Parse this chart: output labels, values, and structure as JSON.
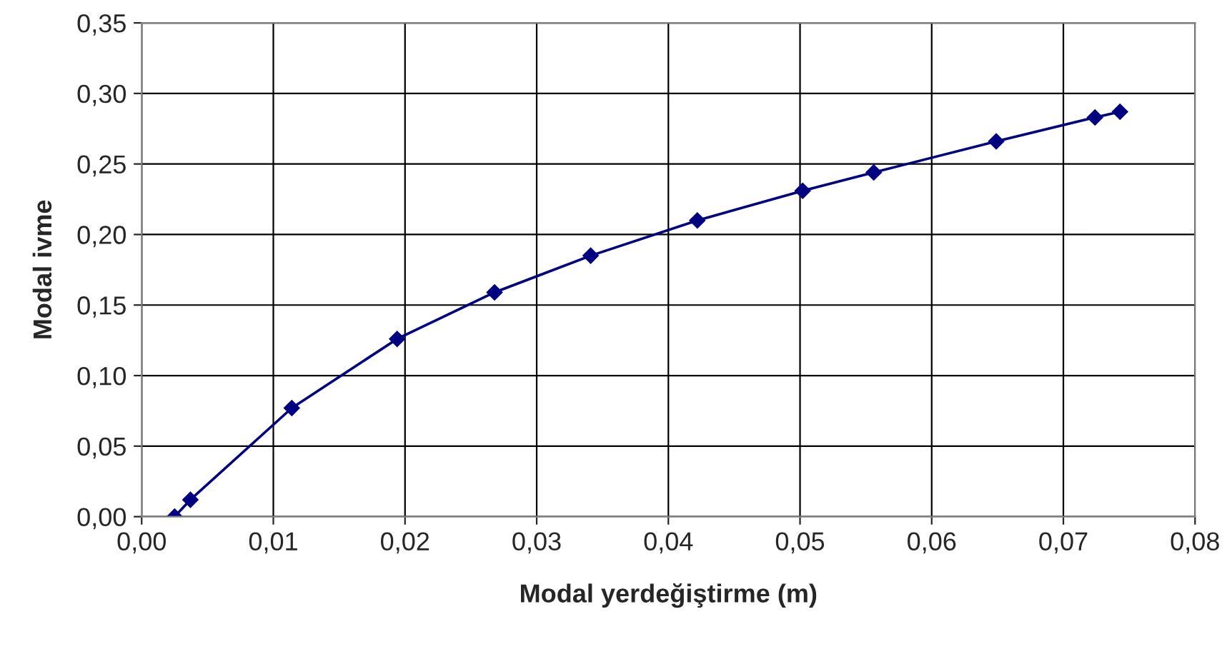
{
  "chart_data": {
    "type": "line",
    "xlabel": "Modal yerdeğiştirme (m)",
    "ylabel": "Modal ivme",
    "series": [
      {
        "color": "#000080",
        "x": [
          0.0025,
          0.0037,
          0.0114,
          0.0194,
          0.0268,
          0.0341,
          0.0422,
          0.0502,
          0.0556,
          0.0649,
          0.0724,
          0.0743
        ],
        "values": [
          0.0,
          0.012,
          0.077,
          0.126,
          0.159,
          0.185,
          0.21,
          0.231,
          0.244,
          0.266,
          0.283,
          0.287
        ]
      }
    ],
    "marker": "diamond",
    "line_style": "solid",
    "grid": true,
    "legend": false,
    "xlim": [
      0,
      0.08
    ],
    "ylim": [
      0,
      0.35
    ],
    "xticks": [
      {
        "value": 0,
        "label": "0,00"
      },
      {
        "value": 0.01,
        "label": "0,01"
      },
      {
        "value": 0.02,
        "label": "0,02"
      },
      {
        "value": 0.03,
        "label": "0,03"
      },
      {
        "value": 0.04,
        "label": "0,04"
      },
      {
        "value": 0.05,
        "label": "0,05"
      },
      {
        "value": 0.06,
        "label": "0,06"
      },
      {
        "value": 0.07,
        "label": "0,07"
      },
      {
        "value": 0.08,
        "label": "0,08"
      }
    ],
    "yticks": [
      {
        "value": 0,
        "label": "0,00"
      },
      {
        "value": 0.05,
        "label": "0,05"
      },
      {
        "value": 0.1,
        "label": "0,10"
      },
      {
        "value": 0.15,
        "label": "0,15"
      },
      {
        "value": 0.2,
        "label": "0,20"
      },
      {
        "value": 0.25,
        "label": "0,25"
      },
      {
        "value": 0.3,
        "label": "0,30"
      },
      {
        "value": 0.35,
        "label": "0,35"
      }
    ]
  }
}
